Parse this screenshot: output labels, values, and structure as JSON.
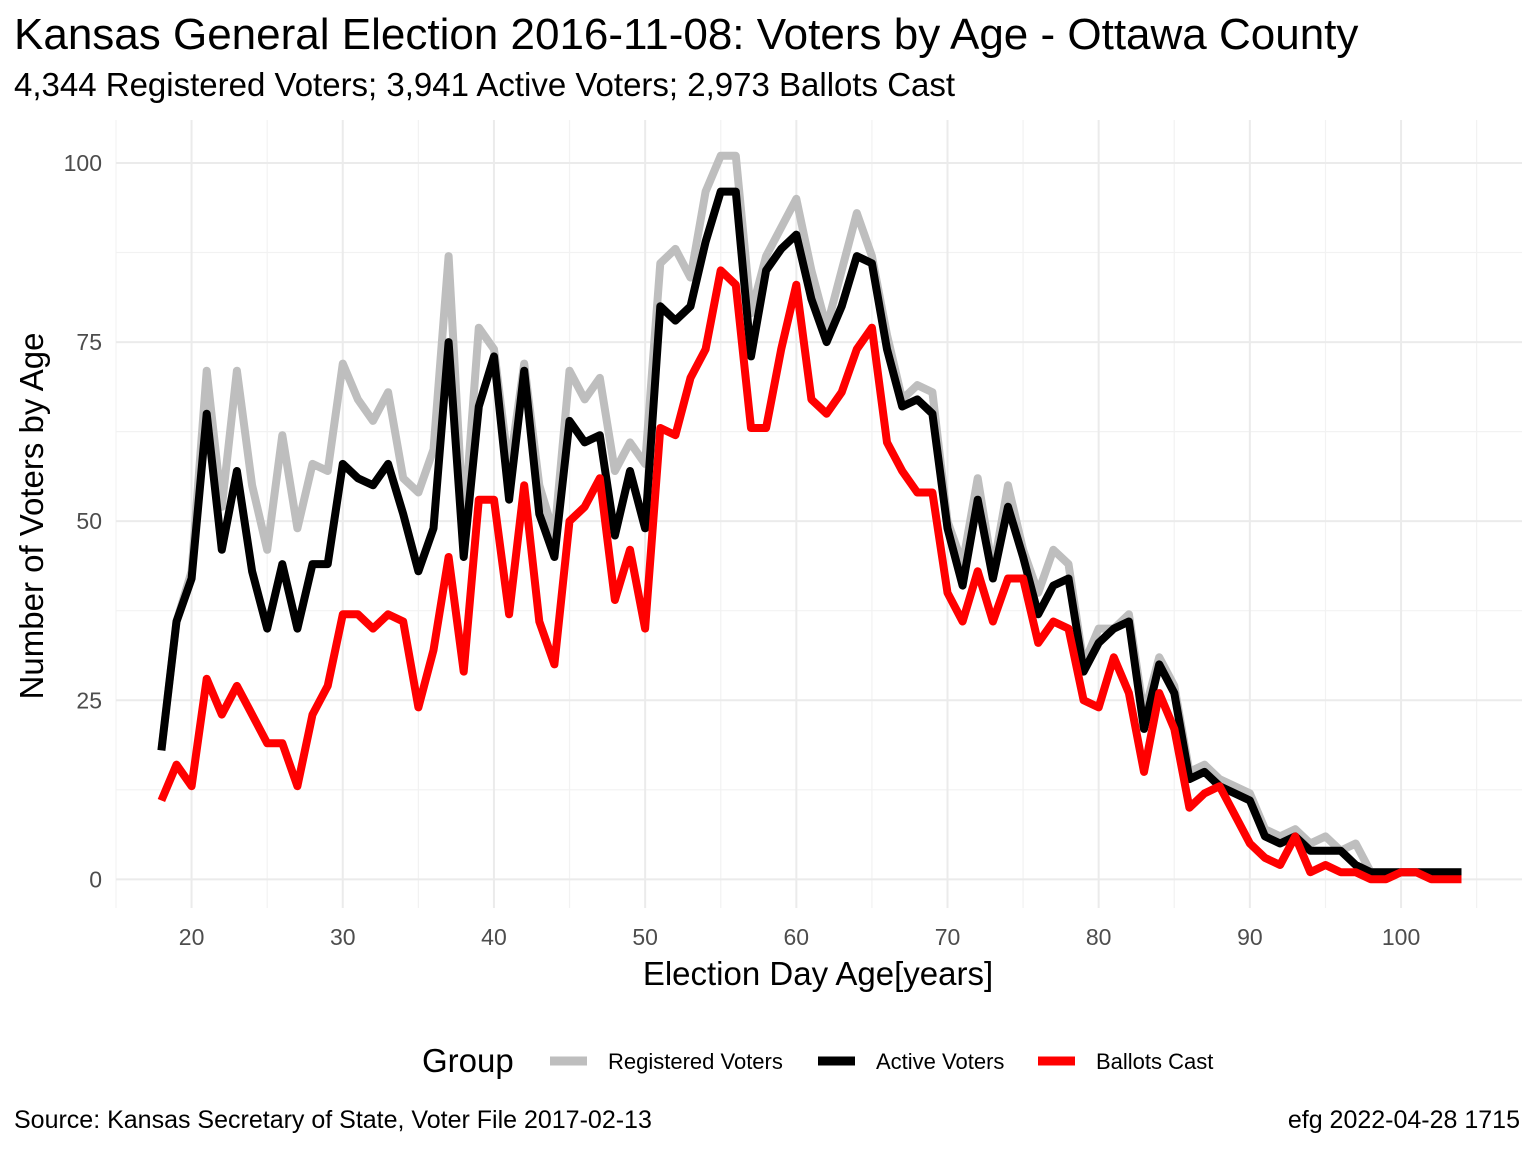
{
  "chart_data": {
    "type": "line",
    "title": "Kansas General Election 2016-11-08:  Voters by Age - Ottawa County",
    "subtitle": "4,344 Registered Voters; 3,941 Active Voters; 2,973 Ballots Cast",
    "xlabel": "Election Day Age[years]",
    "ylabel": "Number of Voters by Age",
    "caption_left": "Source:  Kansas Secretary of State, Voter File  2017-02-13",
    "caption_right": "efg 2022-04-28 1715",
    "xlim": [
      15,
      108
    ],
    "ylim": [
      -4,
      106
    ],
    "x_ticks": [
      20,
      30,
      40,
      50,
      60,
      70,
      80,
      90,
      100
    ],
    "y_ticks": [
      0,
      25,
      50,
      75,
      100
    ],
    "grid": true,
    "legend": {
      "title": "Group",
      "position": "bottom",
      "entries": [
        "Registered Voters",
        "Active Voters",
        "Ballots Cast"
      ]
    },
    "x": [
      18,
      19,
      20,
      21,
      22,
      23,
      24,
      25,
      26,
      27,
      28,
      29,
      30,
      31,
      32,
      33,
      34,
      35,
      36,
      37,
      38,
      39,
      40,
      41,
      42,
      43,
      44,
      45,
      46,
      47,
      48,
      49,
      50,
      51,
      52,
      53,
      54,
      55,
      56,
      57,
      58,
      59,
      60,
      61,
      62,
      63,
      64,
      65,
      66,
      67,
      68,
      69,
      70,
      71,
      72,
      73,
      74,
      75,
      76,
      77,
      78,
      79,
      80,
      81,
      82,
      83,
      84,
      85,
      86,
      87,
      88,
      89,
      90,
      91,
      92,
      93,
      94,
      95,
      96,
      97,
      98,
      99,
      100,
      101,
      102,
      103,
      104
    ],
    "series": [
      {
        "name": "Registered Voters",
        "color": "#bebebe",
        "values": [
          18,
          36,
          43,
          71,
          52,
          71,
          55,
          46,
          62,
          49,
          58,
          57,
          72,
          67,
          64,
          68,
          56,
          54,
          60,
          87,
          49,
          77,
          74,
          57,
          72,
          55,
          48,
          71,
          67,
          70,
          57,
          61,
          58,
          86,
          88,
          84,
          96,
          101,
          101,
          79,
          87,
          91,
          95,
          85,
          77,
          85,
          93,
          87,
          76,
          67,
          69,
          68,
          50,
          44,
          56,
          43,
          55,
          46,
          40,
          46,
          44,
          30,
          35,
          35,
          37,
          23,
          31,
          27,
          15,
          16,
          14,
          13,
          12,
          7,
          6,
          7,
          5,
          6,
          4,
          5,
          1,
          1,
          1,
          1,
          1,
          1,
          1
        ]
      },
      {
        "name": "Active Voters",
        "color": "#000000",
        "values": [
          18,
          36,
          42,
          65,
          46,
          57,
          43,
          35,
          44,
          35,
          44,
          44,
          58,
          56,
          55,
          58,
          51,
          43,
          49,
          75,
          45,
          66,
          73,
          53,
          71,
          51,
          45,
          64,
          61,
          62,
          48,
          57,
          49,
          80,
          78,
          80,
          89,
          96,
          96,
          73,
          85,
          88,
          90,
          81,
          75,
          80,
          87,
          86,
          74,
          66,
          67,
          65,
          49,
          41,
          53,
          42,
          52,
          45,
          37,
          41,
          42,
          29,
          33,
          35,
          36,
          21,
          30,
          26,
          14,
          15,
          13,
          12,
          11,
          6,
          5,
          6,
          4,
          4,
          4,
          2,
          1,
          1,
          1,
          1,
          1,
          1,
          1
        ]
      },
      {
        "name": "Ballots Cast",
        "color": "#ff0000",
        "values": [
          11,
          16,
          13,
          28,
          23,
          27,
          23,
          19,
          19,
          13,
          23,
          27,
          37,
          37,
          35,
          37,
          36,
          24,
          32,
          45,
          29,
          53,
          53,
          37,
          55,
          36,
          30,
          50,
          52,
          56,
          39,
          46,
          35,
          63,
          62,
          70,
          74,
          85,
          83,
          63,
          63,
          74,
          83,
          67,
          65,
          68,
          74,
          77,
          61,
          57,
          54,
          54,
          40,
          36,
          43,
          36,
          42,
          42,
          33,
          36,
          35,
          25,
          24,
          31,
          26,
          15,
          26,
          21,
          10,
          12,
          13,
          9,
          5,
          3,
          2,
          6,
          1,
          2,
          1,
          1,
          0,
          0,
          1,
          1,
          0,
          0,
          0
        ]
      }
    ]
  }
}
